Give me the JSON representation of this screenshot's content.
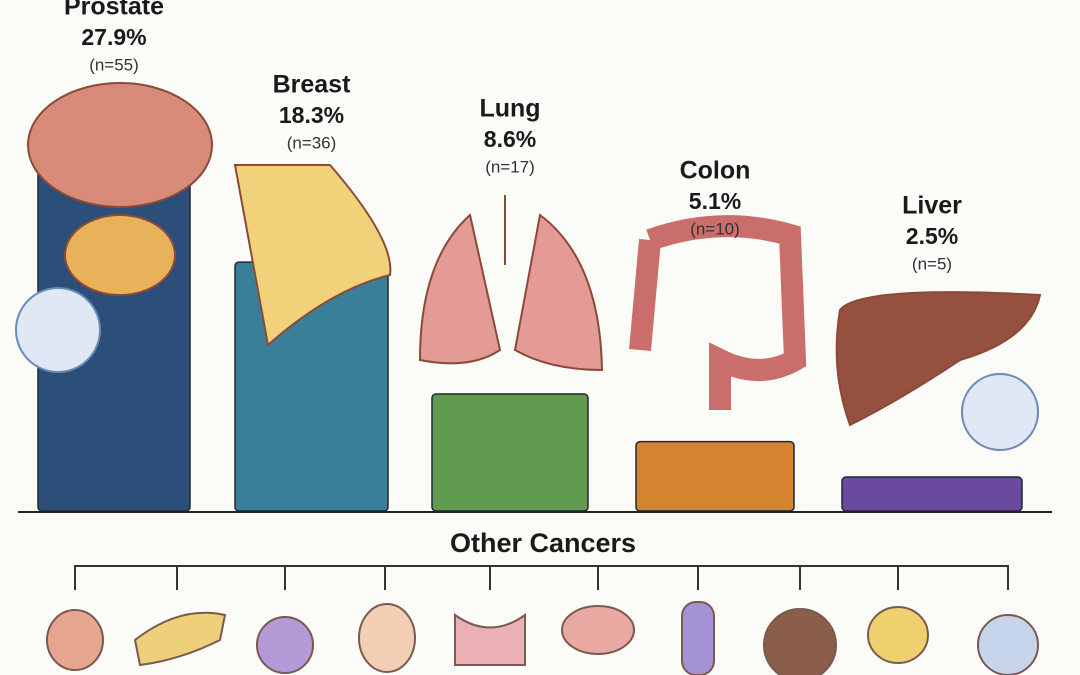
{
  "chart_data": {
    "type": "bar",
    "categories": [
      "Prostate",
      "Breast",
      "Lung",
      "Colon",
      "Liver"
    ],
    "values": [
      27.9,
      18.3,
      8.6,
      5.1,
      2.5
    ],
    "value_labels": [
      "27.9%",
      "18.3%",
      "8.6%",
      "5.1%",
      "2.5%"
    ],
    "count_labels": [
      "(n=55)",
      "(n=36)",
      "(n=17)",
      "(n=10)",
      "(n=5)"
    ],
    "colors": [
      "#2b4f78",
      "#3a7f99",
      "#5f9a4f",
      "#d4832f",
      "#6a4a9f"
    ],
    "other_title": "Other Cancers"
  }
}
